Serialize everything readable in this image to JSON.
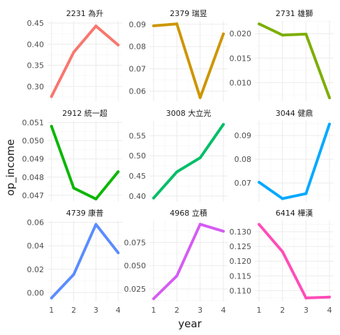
{
  "chart_data": {
    "type": "line",
    "layout": "facet_wrap",
    "xlabel": "year",
    "ylabel": "op_income",
    "x": [
      1,
      2,
      3,
      4
    ],
    "x_ticks": [
      "1",
      "2",
      "3",
      "4"
    ],
    "grid": true,
    "legend": "none",
    "facets": [
      {
        "strip": "2231 為升",
        "color": "#F8766D",
        "values": [
          0.276,
          0.381,
          0.443,
          0.398
        ],
        "ylim": [
          0.265,
          0.455
        ],
        "yticks": [
          0.3,
          0.35,
          0.4,
          0.45
        ],
        "ytick_labels": [
          "0.30",
          "0.35",
          "0.40",
          "0.45"
        ]
      },
      {
        "strip": "2379 瑞昱",
        "color": "#CD9600",
        "values": [
          0.0893,
          0.0902,
          0.0571,
          0.0857
        ],
        "ylim": [
          0.0555,
          0.0915
        ],
        "yticks": [
          0.06,
          0.07,
          0.08,
          0.09
        ],
        "ytick_labels": [
          "0.06",
          "0.07",
          "0.08",
          "0.09"
        ]
      },
      {
        "strip": "2731 雄獅",
        "color": "#7CAE00",
        "values": [
          0.022,
          0.0197,
          0.0199,
          0.0069
        ],
        "ylim": [
          0.0062,
          0.0226
        ],
        "yticks": [
          0.01,
          0.015,
          0.02
        ],
        "ytick_labels": [
          "0.010",
          "0.015",
          "0.020"
        ]
      },
      {
        "strip": "2912 統一超",
        "color": "#0CB702",
        "values": [
          0.0508,
          0.0474,
          0.0468,
          0.0483
        ],
        "ylim": [
          0.04665,
          0.0511
        ],
        "yticks": [
          0.047,
          0.048,
          0.049,
          0.05,
          0.051
        ],
        "ytick_labels": [
          "0.047",
          "0.048",
          "0.049",
          "0.050",
          "0.051"
        ]
      },
      {
        "strip": "3008 大立光",
        "color": "#00BE67",
        "values": [
          0.395,
          0.46,
          0.495,
          0.578
        ],
        "ylim": [
          0.386,
          0.587
        ],
        "yticks": [
          0.4,
          0.45,
          0.5,
          0.55
        ],
        "ytick_labels": [
          "0.40",
          "0.45",
          "0.50",
          "0.55"
        ]
      },
      {
        "strip": "3044 健鼎",
        "color": "#00A9FF",
        "values": [
          0.0703,
          0.0634,
          0.0655,
          0.0948
        ],
        "ylim": [
          0.0621,
          0.0962
        ],
        "yticks": [
          0.07,
          0.08,
          0.09
        ],
        "ytick_labels": [
          "0.07",
          "0.08",
          "0.09"
        ]
      },
      {
        "strip": "4739 康普",
        "color": "#5B8CFF",
        "values": [
          -0.0045,
          0.0155,
          0.0582,
          0.034
        ],
        "ylim": [
          -0.0075,
          0.0615
        ],
        "yticks": [
          0.0,
          0.02,
          0.04,
          0.06
        ],
        "ytick_labels": [
          "0.00",
          "0.02",
          "0.04",
          "0.06"
        ]
      },
      {
        "strip": "4968 立積",
        "color": "#D55CF2",
        "values": [
          0.0145,
          0.039,
          0.0945,
          0.087
        ],
        "ylim": [
          0.0115,
          0.0985
        ],
        "yticks": [
          0.025,
          0.05,
          0.075
        ],
        "ytick_labels": [
          "0.025",
          "0.050",
          "0.075"
        ]
      },
      {
        "strip": "6414 樺漢",
        "color": "#FF4CB8",
        "values": [
          0.1325,
          0.1232,
          0.1075,
          0.1078
        ],
        "ylim": [
          0.1063,
          0.1338
        ],
        "yticks": [
          0.11,
          0.115,
          0.12,
          0.125,
          0.13
        ],
        "ytick_labels": [
          "0.110",
          "0.115",
          "0.120",
          "0.125",
          "0.130"
        ]
      }
    ]
  }
}
